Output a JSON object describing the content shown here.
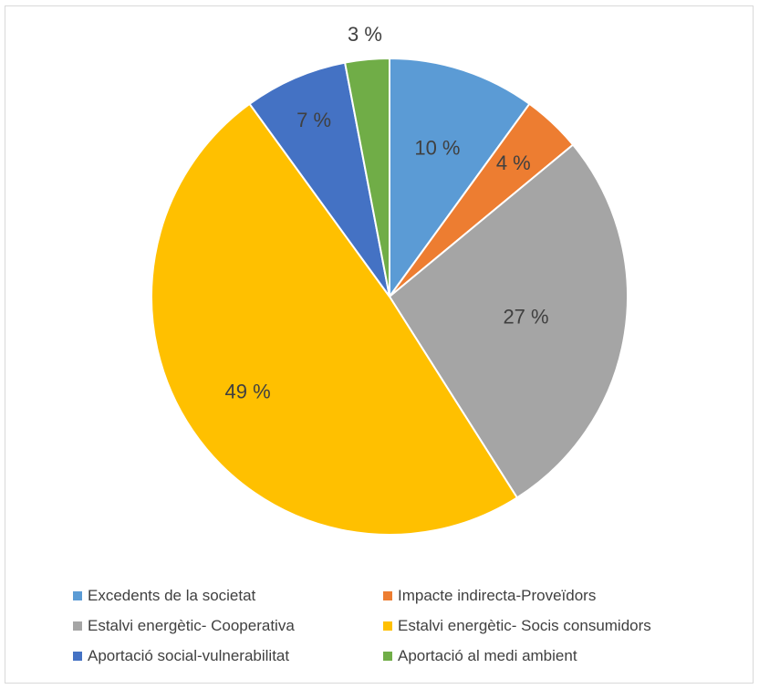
{
  "chart_data": {
    "type": "pie",
    "title": "",
    "categories": [
      "Excedents de la societat",
      "Impacte indirecta-Proveïdors",
      "Estalvi energètic- Cooperativa",
      "Estalvi energètic- Socis consumidors",
      "Aportació social-vulnerabilitat",
      "Aportació al medi ambient"
    ],
    "values": [
      10,
      4,
      27,
      49,
      7,
      3
    ],
    "labels": [
      "10 %",
      "4 %",
      "27 %",
      "49 %",
      "7 %",
      "3 %"
    ],
    "colors": [
      "#5B9BD5",
      "#ED7D31",
      "#A5A5A5",
      "#FFC000",
      "#4472C4",
      "#70AD47"
    ],
    "legend_position": "bottom"
  }
}
